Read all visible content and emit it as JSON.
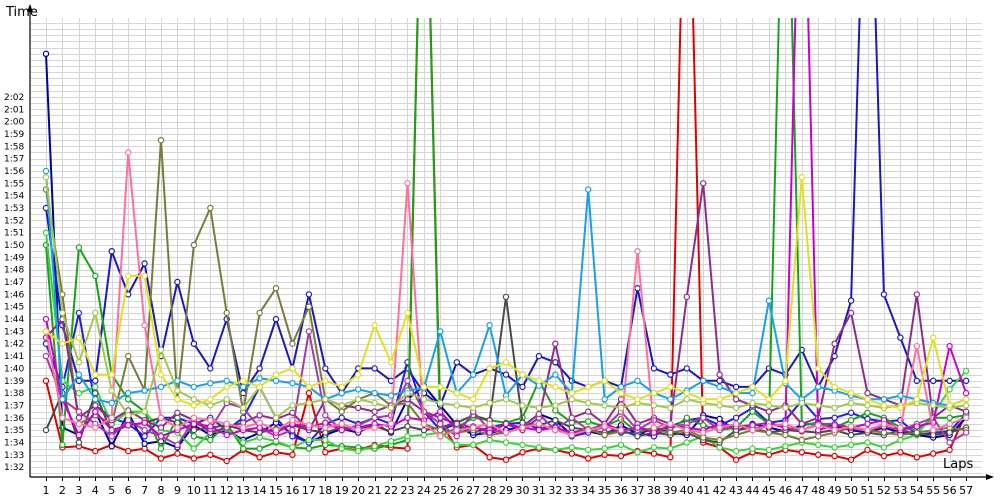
{
  "chart_data": {
    "type": "line",
    "ylabel": "Time",
    "xlabel": "Laps",
    "x": [
      1,
      2,
      3,
      4,
      5,
      6,
      7,
      8,
      9,
      10,
      11,
      12,
      13,
      14,
      15,
      16,
      17,
      18,
      19,
      20,
      21,
      22,
      23,
      24,
      25,
      26,
      27,
      28,
      29,
      30,
      31,
      32,
      33,
      34,
      35,
      36,
      37,
      38,
      39,
      40,
      41,
      42,
      43,
      44,
      45,
      46,
      47,
      48,
      49,
      50,
      51,
      52,
      53,
      54,
      55,
      56,
      57
    ],
    "ytick_labels": [
      "1:32",
      "1:33",
      "1:34",
      "1:35",
      "1:36",
      "1:37",
      "1:38",
      "1:39",
      "1:40",
      "1:41",
      "1:42",
      "1:43",
      "1:44",
      "1:45",
      "1:46",
      "1:47",
      "1:48",
      "1:49",
      "1:50",
      "1:51",
      "1:52",
      "1:53",
      "1:54",
      "1:55",
      "1:56",
      "1:57",
      "1:58",
      "1:59",
      "2:00",
      "2:01",
      "2:02"
    ],
    "ylim_seconds": [
      91.2,
      128.4
    ],
    "grid": true,
    "series": [
      {
        "color": "#e00000",
        "values": [
          99,
          93.6,
          93.7,
          93.3,
          93.8,
          93.3,
          93.5,
          92.7,
          93.1,
          92.7,
          93.0,
          92.5,
          93.4,
          92.8,
          93.2,
          93.0,
          98.0,
          93.2,
          93.5,
          93.4,
          93.8,
          93.6,
          93.5,
          150,
          95.6,
          93.6,
          93.8,
          92.8,
          92.6,
          93.2,
          93.5,
          93.4,
          93.1,
          92.7,
          93.0,
          92.9,
          93.3,
          93.1,
          92.8,
          150,
          94.0,
          93.6,
          92.6,
          93.2,
          93.0,
          93.4,
          93.2,
          93.0,
          92.9,
          92.6,
          93.4,
          92.9,
          93.2,
          92.8,
          93.1,
          93.4,
          96.4
        ]
      },
      {
        "color": "#00009a",
        "values": [
          125.5,
          95.2,
          94.6,
          96.5,
          93.7,
          96.4,
          93.9,
          94.1,
          93.6,
          95.4,
          94.6,
          95.0,
          94.2,
          94.8,
          95.6,
          94.7,
          94.0,
          94.6,
          95.1,
          94.8,
          95.5,
          94.8,
          97.5,
          98.6,
          97.0,
          95.4,
          94.6,
          94.8,
          95.0,
          95.3,
          96.3,
          95.8,
          94.6,
          94.9,
          94.6,
          95.4,
          94.7,
          95.1,
          94.8,
          94.6,
          96.2,
          95.9,
          94.9,
          95.5,
          95.2,
          94.9,
          95.4,
          95.6,
          95.3,
          95.0,
          94.8,
          95.2,
          94.8,
          94.6,
          94.4,
          94.6,
          96.0
        ]
      },
      {
        "color": "#1a1ab8",
        "values": [
          113,
          103.5,
          99,
          99,
          109.5,
          106,
          108.5,
          101,
          107,
          102,
          100,
          104,
          98,
          100,
          104,
          100,
          106,
          100,
          98,
          100,
          100,
          99,
          100,
          98,
          97,
          100.5,
          99.5,
          100,
          99.5,
          98.5,
          101,
          100.5,
          99,
          98.5,
          99,
          98.5,
          106.5,
          100,
          99.5,
          100,
          99,
          99,
          98.5,
          98.5,
          100,
          99.5,
          101.5,
          98.5,
          101,
          105.5,
          150,
          106,
          102.5,
          99,
          99,
          99,
          99
        ]
      },
      {
        "color": "#2020e0",
        "values": [
          102,
          98.5,
          104.5,
          97,
          96,
          95.5,
          94.5,
          96,
          96,
          95.5,
          96,
          95,
          96,
          98.5,
          96,
          94.5,
          94,
          95.5,
          96,
          95.5,
          96,
          95.5,
          100.5,
          96.5,
          95,
          95.5,
          94.8,
          95.2,
          95.5,
          95.6,
          95.1,
          95.3,
          94.5,
          94.8,
          95.4,
          94.8,
          94.8,
          94.5,
          95.3,
          95.8,
          96,
          95.4,
          96,
          96.8,
          95.6,
          95.8,
          97.4,
          95.9,
          96.0,
          96.4,
          95.9,
          95.7,
          95.8,
          94.6,
          94.8,
          94.9,
          96.3
        ]
      },
      {
        "color": "#19a319",
        "values": [
          110,
          93.8,
          109.8,
          107.5,
          99.5,
          97.5,
          96.5,
          93.5,
          96,
          94.5,
          94.2,
          95.5,
          93.5,
          93.5,
          94,
          93.6,
          93.5,
          93.8,
          93.7,
          93.6,
          93.5,
          93.8,
          94.2,
          150,
          94.5,
          95.2,
          96,
          95.8,
          95.6,
          96,
          99,
          96.6,
          95.6,
          95.7,
          95.3,
          95.9,
          94.8,
          95.2,
          95.0,
          96.0,
          95.4,
          95.0,
          95.2,
          96.5,
          95.5,
          150,
          95.5,
          95.5,
          95.2,
          95.8,
          96.4,
          96.0,
          95.2,
          95.0,
          96.0,
          96.0,
          96.2
        ]
      },
      {
        "color": "#3ad33a",
        "values": [
          111,
          99,
          98,
          98.5,
          95.5,
          96.5,
          96.5,
          95,
          94.8,
          93.5,
          94.8,
          95.1,
          94.0,
          94.4,
          94.1,
          93.6,
          94.2,
          94.2,
          93.5,
          93.3,
          93.7,
          94.1,
          94.5,
          94.6,
          94.8,
          93.8,
          93.8,
          94.2,
          94.0,
          93.8,
          93.6,
          93.4,
          93.6,
          93.4,
          93.5,
          93.8,
          93.2,
          93.6,
          93.5,
          94.0,
          94.5,
          93.6,
          93.3,
          93.5,
          93.4,
          93.7,
          94.0,
          93.8,
          93.6,
          93.8,
          94.0,
          93.6,
          94.2,
          94.6,
          96.3,
          98.3,
          99.8
        ]
      },
      {
        "color": "#4a4a4a",
        "values": [
          95,
          98,
          94,
          98,
          94.8,
          95.4,
          95.6,
          96.0,
          95.6,
          95.0,
          95.2,
          95.4,
          95.0,
          94.8,
          95.1,
          95.4,
          95.0,
          94.8,
          95.2,
          95.1,
          95.3,
          94.9,
          95.3,
          95.0,
          95.2,
          95.6,
          96.2,
          95.8,
          105.8,
          95.6,
          95.4,
          95.8,
          95.2,
          95.0,
          94.8,
          95.0,
          94.5,
          94.8,
          94.6,
          94.8,
          94.2,
          94.0,
          95.0,
          95.2,
          94.8,
          95.0,
          94.9,
          94.8,
          95.0,
          94.6,
          94.8,
          94.6,
          95.0,
          94.7,
          94.6,
          94.8,
          95.2
        ]
      },
      {
        "color": "#7a7a3a",
        "values": [
          114.5,
          106,
          95.5,
          96.2,
          95.5,
          101,
          98.2,
          118.5,
          97.5,
          110,
          113,
          104.5,
          96.5,
          104.5,
          106.5,
          102,
          105,
          97.5,
          96.5,
          97.5,
          98.0,
          97.0,
          97.2,
          95.5,
          95.0,
          94.8,
          95.0,
          94.6,
          94.8,
          95.2,
          95.5,
          95.0,
          94.8,
          95.1,
          94.6,
          94.9,
          95.2,
          95.0,
          94.8,
          95.0,
          94.4,
          94.2,
          94.6,
          95.0,
          94.8,
          94.6,
          94.2,
          94.5,
          94.8,
          95.2,
          95.0,
          94.8,
          94.6,
          94.8,
          95.0,
          95.2,
          95.0
        ]
      },
      {
        "color": "#8e2c8e",
        "values": [
          102.5,
          104,
          96,
          97,
          95.8,
          96.6,
          95.8,
          95.2,
          96.4,
          95.8,
          94.8,
          95.2,
          95.6,
          96.2,
          95.9,
          96.4,
          95.0,
          97.5,
          97.0,
          96.8,
          96.5,
          97.0,
          97.5,
          96.5,
          96.0,
          95.5,
          95.2,
          95.0,
          95.5,
          95.0,
          96.0,
          102.0,
          96.0,
          96.5,
          95.5,
          97.5,
          95.5,
          96.0,
          95.5,
          105.8,
          115.0,
          99.5,
          97.5,
          97.0,
          96.5,
          97.0,
          95.5,
          96.0,
          102.0,
          104.5,
          98.0,
          97.5,
          97.0,
          106.0,
          96.0,
          97.0,
          96.5
        ]
      },
      {
        "color": "#a53ca5",
        "values": [
          101,
          97.5,
          96.5,
          95.5,
          94.5,
          95.8,
          95.0,
          94.5,
          93.8,
          95.8,
          95.1,
          97.2,
          96.8,
          95.2,
          94.5,
          95.0,
          103.0,
          96.2,
          95.0,
          95.4,
          96.0,
          96.2,
          99.0,
          96.5,
          95.5,
          94.5,
          96.5,
          95.0,
          94.8,
          95.2,
          96.3,
          95.0,
          96.0,
          95.0,
          95.2,
          96.5,
          95.0,
          95.8,
          95.2,
          95.5,
          96.0,
          95.0,
          95.5,
          95.0,
          95.5,
          95.2,
          95.0,
          95.5,
          95.5,
          95.2,
          95.0,
          95.3,
          95.0,
          95.5,
          96.0,
          94.0,
          94.8
        ]
      },
      {
        "color": "#c800c8",
        "values": [
          104,
          97.5,
          94.6,
          96.5,
          95.0,
          95.4,
          95.6,
          94.5,
          95.0,
          95.5,
          95.3,
          94.6,
          95.0,
          95.2,
          94.8,
          95.5,
          95.2,
          95.6,
          95.0,
          95.2,
          95.5,
          95.3,
          96.0,
          95.8,
          96.5,
          95.0,
          95.3,
          94.8,
          95.5,
          95.2,
          95.0,
          95.2,
          94.8,
          95.0,
          95.5,
          95.0,
          95.2,
          94.8,
          95.4,
          95.2,
          95.0,
          95.5,
          95.3,
          95.4,
          95.6,
          95.2,
          150,
          95.0,
          95.4,
          95.2,
          95.5,
          95.8,
          95.0,
          95.3,
          95.6,
          101.8,
          98.0
        ]
      },
      {
        "color": "#ff6fa0",
        "values": [
          103,
          96,
          95.5,
          95.2,
          96.0,
          117.5,
          103.5,
          96.0,
          95.2,
          96.0,
          95.8,
          95.5,
          95.2,
          95.6,
          95.0,
          95.8,
          95.4,
          95.2,
          95.5,
          95.0,
          95.2,
          95.5,
          115.0,
          95.5,
          94.5,
          95.0,
          95.2,
          95.5,
          94.8,
          95.2,
          95.5,
          95.0,
          94.6,
          95.0,
          95.3,
          95.0,
          109.5,
          95.2,
          95.5,
          95.0,
          94.8,
          95.2,
          95.5,
          95.0,
          95.3,
          95.5,
          95.0,
          95.4,
          95.0,
          95.3,
          95.0,
          95.5,
          95.2,
          101.8,
          95.0,
          95.5,
          96.0
        ]
      },
      {
        "color": "#18a0e8",
        "values": [
          116,
          97.5,
          99.5,
          97.5,
          97.2,
          98.0,
          98.2,
          98.5,
          99.0,
          98.5,
          98.8,
          99.0,
          98.5,
          99.2,
          99.0,
          98.8,
          98.5,
          97.5,
          98.0,
          98.3,
          98.0,
          97.8,
          98.2,
          98.4,
          103.0,
          98.0,
          99.5,
          103.5,
          97.8,
          99.5,
          98.6,
          99.5,
          98.0,
          114.5,
          97.5,
          98.5,
          99.0,
          98.0,
          97.5,
          98.2,
          99.0,
          98.5,
          98.0,
          98.0,
          105.5,
          98.8,
          97.5,
          98.5,
          98.2,
          97.8,
          97.5,
          97.5,
          97.8,
          97.5,
          97.2,
          97.0,
          97.5
        ]
      },
      {
        "color": "#a0c850",
        "values": [
          115.5,
          104.5,
          100.5,
          104.5,
          98.2,
          96.2,
          96.5,
          101.5,
          98.2,
          97.5,
          97.0,
          97.5,
          96.8,
          98.5,
          96.0,
          97.0,
          97.2,
          97.5,
          97.0,
          97.5,
          97.2,
          96.8,
          98.0,
          97.5,
          97.2,
          97.0,
          96.8,
          97.2,
          97.5,
          97.0,
          96.8,
          97.0,
          97.5,
          97.2,
          97.0,
          96.8,
          97.2,
          97.0,
          96.8,
          97.5,
          97.2,
          97.0,
          96.8,
          97.2,
          97.0,
          96.8,
          97.2,
          97.0,
          96.8,
          97.2,
          97.0,
          96.8,
          97.0,
          97.2,
          97.0,
          96.8,
          97.0
        ]
      },
      {
        "color": "#e0e020",
        "values": [
          103,
          102,
          102.5,
          99.5,
          99.5,
          107.5,
          107.5,
          99.5,
          97.5,
          97.0,
          97.5,
          98.5,
          99.0,
          98.5,
          99.5,
          100.0,
          98.5,
          99.0,
          98.5,
          99.5,
          103.5,
          100.5,
          104.5,
          98.5,
          98.5,
          98.0,
          97.5,
          100.0,
          100.5,
          99.5,
          99.0,
          98.5,
          98.0,
          98.5,
          99.0,
          98.0,
          97.5,
          98.0,
          98.5,
          98.0,
          97.5,
          97.5,
          98.0,
          98.5,
          97.5,
          99.0,
          115.5,
          100.0,
          98.5,
          98.0,
          97.5,
          97.0,
          96.8,
          97.5,
          102.5,
          97.0,
          97.5
        ]
      }
    ]
  }
}
